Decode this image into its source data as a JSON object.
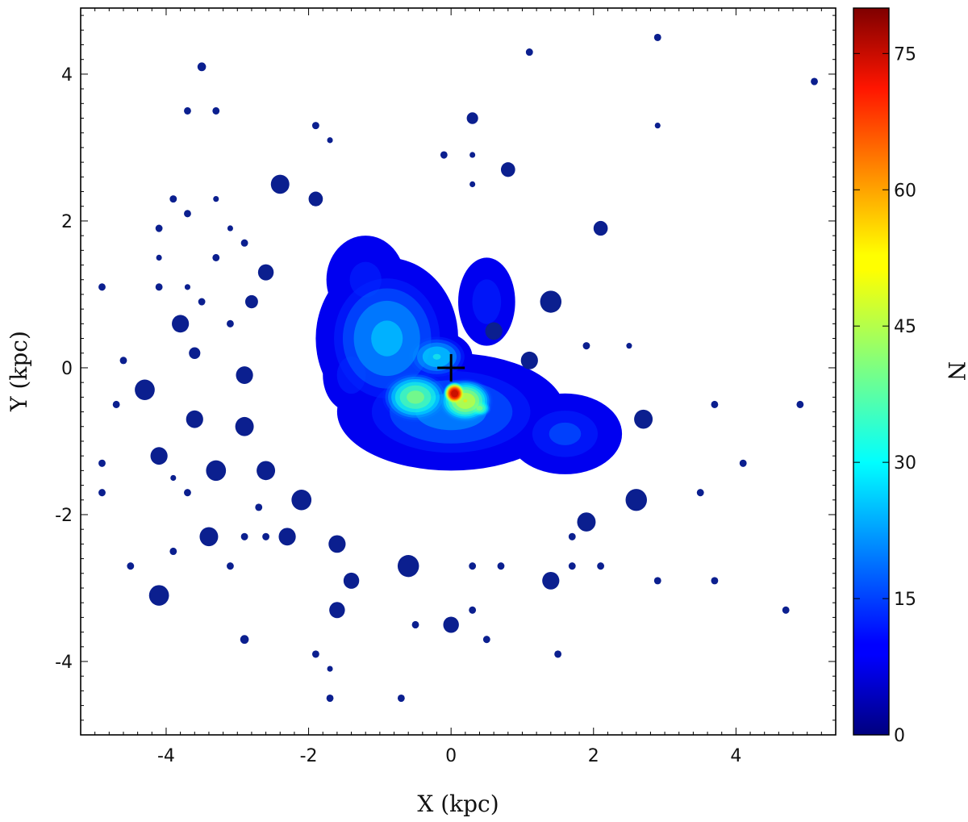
{
  "chart_data": {
    "type": "heatmap",
    "title": "",
    "xlabel": "X (kpc)",
    "ylabel": "Y (kpc)",
    "xlim": [
      -5.2,
      5.4
    ],
    "ylim": [
      -5.0,
      4.9
    ],
    "x_ticks": [
      -4,
      -2,
      0,
      2,
      4
    ],
    "y_ticks": [
      -4,
      -2,
      0,
      2,
      4
    ],
    "x_tick_labels": [
      "-4",
      "-2",
      "0",
      "2",
      "4"
    ],
    "y_tick_labels": [
      "-4",
      "-2",
      "0",
      "2",
      "4"
    ],
    "colorbar": {
      "label": "N",
      "range": [
        0,
        80
      ],
      "ticks": [
        0,
        15,
        30,
        45,
        60,
        75
      ],
      "tick_labels": [
        "0",
        "15",
        "30",
        "45",
        "60",
        "75"
      ],
      "colormap": "jet"
    },
    "marker": {
      "symbol": "+",
      "x": 0.0,
      "y": 0.0,
      "color": "#000000"
    },
    "density_components": [
      {
        "x": -0.9,
        "y": 0.4,
        "sx": 1.0,
        "sy": 1.1,
        "amp": 10
      },
      {
        "x": -1.2,
        "y": 1.2,
        "sx": 0.55,
        "sy": 0.6,
        "amp": 3
      },
      {
        "x": 0.0,
        "y": -0.6,
        "sx": 1.6,
        "sy": 0.8,
        "amp": 8
      },
      {
        "x": 1.6,
        "y": -0.9,
        "sx": 0.8,
        "sy": 0.55,
        "amp": 5
      },
      {
        "x": 0.5,
        "y": 0.9,
        "sx": 0.4,
        "sy": 0.6,
        "amp": 4
      },
      {
        "x": -0.5,
        "y": -0.4,
        "sx": 0.55,
        "sy": 0.4,
        "amp": 18
      },
      {
        "x": -0.2,
        "y": 0.15,
        "sx": 0.5,
        "sy": 0.35,
        "amp": 12
      },
      {
        "x": 0.2,
        "y": -0.45,
        "sx": 0.45,
        "sy": 0.35,
        "amp": 22
      },
      {
        "x": 0.05,
        "y": -0.35,
        "sx": 0.18,
        "sy": 0.18,
        "amp": 38
      },
      {
        "x": 0.4,
        "y": -0.55,
        "sx": 0.2,
        "sy": 0.15,
        "amp": 18
      },
      {
        "x": -1.4,
        "y": -0.1,
        "sx": 0.4,
        "sy": 0.5,
        "amp": 4
      }
    ],
    "isolated_blobs": [
      {
        "x": -3.5,
        "y": 4.1,
        "r": 0.06
      },
      {
        "x": -3.7,
        "y": 3.5,
        "r": 0.05
      },
      {
        "x": -3.3,
        "y": 3.5,
        "r": 0.05
      },
      {
        "x": -1.9,
        "y": 3.3,
        "r": 0.05
      },
      {
        "x": -1.7,
        "y": 3.1,
        "r": 0.04
      },
      {
        "x": 0.3,
        "y": 3.4,
        "r": 0.08
      },
      {
        "x": -0.1,
        "y": 2.9,
        "r": 0.05
      },
      {
        "x": 0.3,
        "y": 2.9,
        "r": 0.04
      },
      {
        "x": 0.8,
        "y": 2.7,
        "r": 0.1
      },
      {
        "x": 0.3,
        "y": 2.5,
        "r": 0.04
      },
      {
        "x": 1.1,
        "y": 4.3,
        "r": 0.05
      },
      {
        "x": 2.9,
        "y": 4.5,
        "r": 0.05
      },
      {
        "x": 2.9,
        "y": 3.3,
        "r": 0.04
      },
      {
        "x": 5.1,
        "y": 3.9,
        "r": 0.05
      },
      {
        "x": -2.4,
        "y": 2.5,
        "r": 0.13
      },
      {
        "x": -1.9,
        "y": 2.3,
        "r": 0.1
      },
      {
        "x": -3.9,
        "y": 2.3,
        "r": 0.05
      },
      {
        "x": -3.3,
        "y": 2.3,
        "r": 0.04
      },
      {
        "x": -3.7,
        "y": 2.1,
        "r": 0.05
      },
      {
        "x": -4.1,
        "y": 1.9,
        "r": 0.05
      },
      {
        "x": -3.1,
        "y": 1.9,
        "r": 0.04
      },
      {
        "x": -2.9,
        "y": 1.7,
        "r": 0.05
      },
      {
        "x": -4.1,
        "y": 1.5,
        "r": 0.04
      },
      {
        "x": -3.3,
        "y": 1.5,
        "r": 0.05
      },
      {
        "x": -2.6,
        "y": 1.3,
        "r": 0.11
      },
      {
        "x": -4.9,
        "y": 1.1,
        "r": 0.05
      },
      {
        "x": -4.1,
        "y": 1.1,
        "r": 0.05
      },
      {
        "x": -3.7,
        "y": 1.1,
        "r": 0.04
      },
      {
        "x": -3.5,
        "y": 0.9,
        "r": 0.05
      },
      {
        "x": -2.8,
        "y": 0.9,
        "r": 0.09
      },
      {
        "x": -3.8,
        "y": 0.6,
        "r": 0.12
      },
      {
        "x": -3.1,
        "y": 0.6,
        "r": 0.05
      },
      {
        "x": -3.6,
        "y": 0.2,
        "r": 0.08
      },
      {
        "x": -4.6,
        "y": 0.1,
        "r": 0.05
      },
      {
        "x": -2.9,
        "y": -0.1,
        "r": 0.12
      },
      {
        "x": -4.3,
        "y": -0.3,
        "r": 0.14
      },
      {
        "x": -4.7,
        "y": -0.5,
        "r": 0.05
      },
      {
        "x": -3.6,
        "y": -0.7,
        "r": 0.12
      },
      {
        "x": -2.9,
        "y": -0.8,
        "r": 0.13
      },
      {
        "x": -4.9,
        "y": -1.3,
        "r": 0.05
      },
      {
        "x": -4.1,
        "y": -1.2,
        "r": 0.12
      },
      {
        "x": -3.3,
        "y": -1.4,
        "r": 0.14
      },
      {
        "x": -2.6,
        "y": -1.4,
        "r": 0.13
      },
      {
        "x": -3.9,
        "y": -1.5,
        "r": 0.04
      },
      {
        "x": -4.9,
        "y": -1.7,
        "r": 0.05
      },
      {
        "x": -3.7,
        "y": -1.7,
        "r": 0.05
      },
      {
        "x": -2.7,
        "y": -1.9,
        "r": 0.05
      },
      {
        "x": -2.1,
        "y": -1.8,
        "r": 0.14
      },
      {
        "x": -2.6,
        "y": -2.3,
        "r": 0.05
      },
      {
        "x": -3.4,
        "y": -2.3,
        "r": 0.13
      },
      {
        "x": -2.9,
        "y": -2.3,
        "r": 0.05
      },
      {
        "x": -2.3,
        "y": -2.3,
        "r": 0.12
      },
      {
        "x": -3.9,
        "y": -2.5,
        "r": 0.05
      },
      {
        "x": -1.6,
        "y": -2.4,
        "r": 0.12
      },
      {
        "x": -4.5,
        "y": -2.7,
        "r": 0.05
      },
      {
        "x": -3.1,
        "y": -2.7,
        "r": 0.05
      },
      {
        "x": -0.6,
        "y": -2.7,
        "r": 0.15
      },
      {
        "x": 0.3,
        "y": -2.7,
        "r": 0.05
      },
      {
        "x": 0.7,
        "y": -2.7,
        "r": 0.05
      },
      {
        "x": 1.7,
        "y": -2.7,
        "r": 0.05
      },
      {
        "x": 2.1,
        "y": -2.7,
        "r": 0.05
      },
      {
        "x": -4.1,
        "y": -3.1,
        "r": 0.14
      },
      {
        "x": -1.4,
        "y": -2.9,
        "r": 0.11
      },
      {
        "x": 1.4,
        "y": -2.9,
        "r": 0.12
      },
      {
        "x": 2.9,
        "y": -2.9,
        "r": 0.05
      },
      {
        "x": 3.7,
        "y": -2.9,
        "r": 0.05
      },
      {
        "x": -1.6,
        "y": -3.3,
        "r": 0.11
      },
      {
        "x": 0.3,
        "y": -3.3,
        "r": 0.05
      },
      {
        "x": 4.7,
        "y": -3.3,
        "r": 0.05
      },
      {
        "x": -0.5,
        "y": -3.5,
        "r": 0.05
      },
      {
        "x": 0.0,
        "y": -3.5,
        "r": 0.11
      },
      {
        "x": -2.9,
        "y": -3.7,
        "r": 0.06
      },
      {
        "x": 0.5,
        "y": -3.7,
        "r": 0.05
      },
      {
        "x": -1.9,
        "y": -3.9,
        "r": 0.05
      },
      {
        "x": 1.5,
        "y": -3.9,
        "r": 0.05
      },
      {
        "x": -1.7,
        "y": -4.1,
        "r": 0.04
      },
      {
        "x": -1.7,
        "y": -4.5,
        "r": 0.05
      },
      {
        "x": -0.7,
        "y": -4.5,
        "r": 0.05
      },
      {
        "x": 2.1,
        "y": 1.9,
        "r": 0.1
      },
      {
        "x": 1.9,
        "y": 0.3,
        "r": 0.05
      },
      {
        "x": 2.5,
        "y": 0.3,
        "r": 0.04
      },
      {
        "x": 3.7,
        "y": -0.5,
        "r": 0.05
      },
      {
        "x": 4.9,
        "y": -0.5,
        "r": 0.05
      },
      {
        "x": 2.7,
        "y": -0.7,
        "r": 0.13
      },
      {
        "x": 4.1,
        "y": -1.3,
        "r": 0.05
      },
      {
        "x": 3.5,
        "y": -1.7,
        "r": 0.05
      },
      {
        "x": 2.6,
        "y": -1.8,
        "r": 0.15
      },
      {
        "x": 1.9,
        "y": -2.1,
        "r": 0.13
      },
      {
        "x": 1.7,
        "y": -2.3,
        "r": 0.05
      },
      {
        "x": 1.4,
        "y": 0.9,
        "r": 0.15
      },
      {
        "x": 0.6,
        "y": 0.5,
        "r": 0.12
      },
      {
        "x": 1.1,
        "y": 0.1,
        "r": 0.12
      }
    ]
  }
}
